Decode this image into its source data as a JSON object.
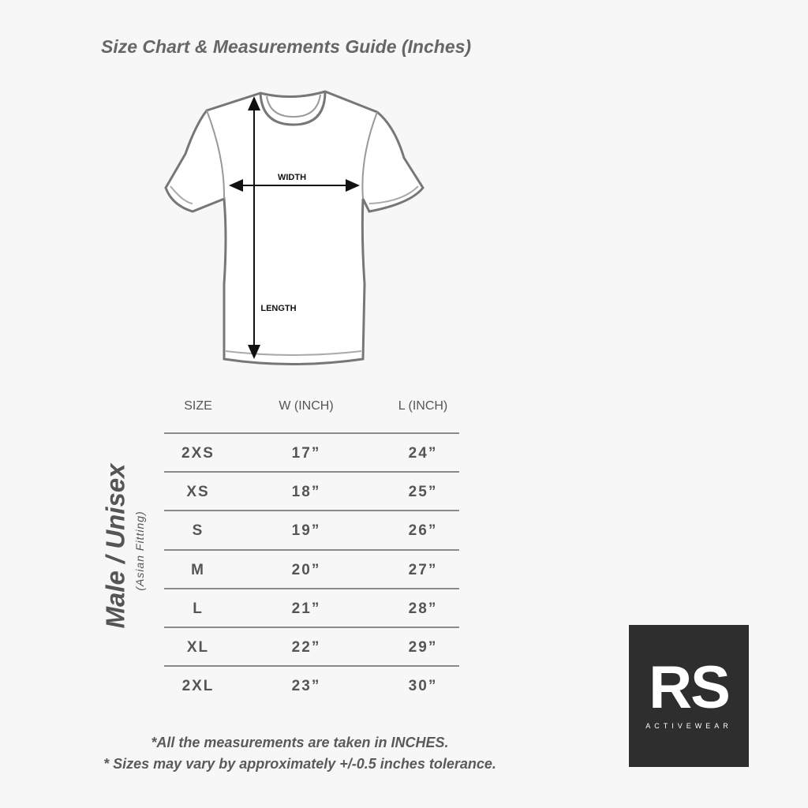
{
  "title": "Size Chart & Measurements Guide (Inches)",
  "diagram": {
    "width_label": "WIDTH",
    "length_label": "LENGTH"
  },
  "side_label": {
    "main": "Male / Unisex",
    "sub": "(Asian Fitting)"
  },
  "table": {
    "headers": [
      "SIZE",
      "W (INCH)",
      "L (INCH)"
    ],
    "rows": [
      [
        "2XS",
        "17”",
        "24”"
      ],
      [
        "XS",
        "18”",
        "25”"
      ],
      [
        "S",
        "19”",
        "26”"
      ],
      [
        "M",
        "20”",
        "27”"
      ],
      [
        "L",
        "21”",
        "28”"
      ],
      [
        "XL",
        "22”",
        "29”"
      ],
      [
        "2XL",
        "23”",
        "30”"
      ]
    ]
  },
  "notes": [
    "*All the measurements are taken in INCHES.",
    "* Sizes may vary by approximately +/-0.5 inches tolerance."
  ],
  "logo": {
    "text": "RS",
    "sub": "ACTIVEWEAR"
  }
}
